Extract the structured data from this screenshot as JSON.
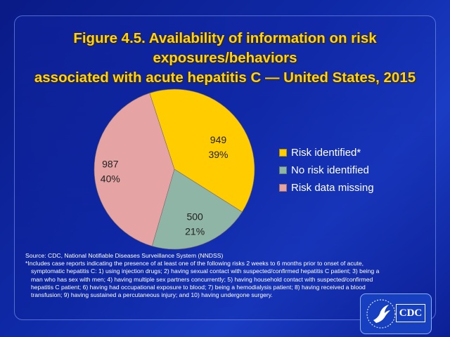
{
  "chart_data": {
    "type": "pie",
    "title": "Figure 4.5. Availability of information on risk exposures/behaviors associated with acute hepatitis C — United States, 2015",
    "title_lines": [
      "Figure 4.5. Availability of information on risk exposures/behaviors",
      "associated with acute hepatitis C — United States, 2015"
    ],
    "legend_position": "right",
    "slices": [
      {
        "label": "Risk identified*",
        "value": 949,
        "percent_label": "39%",
        "color": "#ffcc00"
      },
      {
        "label": "No risk identified",
        "value": 500,
        "percent_label": "21%",
        "color": "#8fb5a6"
      },
      {
        "label": "Risk data missing",
        "value": 987,
        "percent_label": "40%",
        "color": "#e6a3a3"
      }
    ]
  },
  "footnotes": {
    "source": "Source: CDC, National Notifiable Diseases Surveillance System (NNDSS)",
    "line1": "*Includes case reports indicating the presence of at least one of the following risks 2 weeks to 6 months prior to onset of acute,",
    "line2": "symptomatic hepatitis C:  1) using injection drugs; 2) having sexual contact with suspected/confirmed hepatitis C patient; 3) being a",
    "line3": "man who has sex with men; 4) having multiple sex partners concurrently; 5) having household contact with suspected/confirmed",
    "line4": "hepatitis C patient; 6) having had occupational exposure to blood; 7) being a hemodialysis patient; 8) having received a blood",
    "line5": "transfusion; 9)  having sustained a percutaneous injury; and 10) having undergone surgery."
  },
  "logo": {
    "text": "CDC"
  }
}
